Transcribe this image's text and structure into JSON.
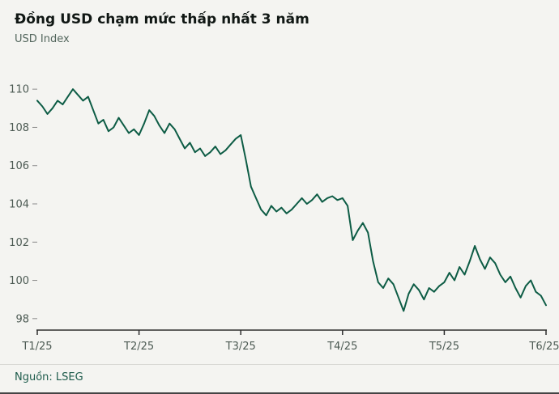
{
  "header": {
    "title": "Đồng USD chạm mức thấp nhất 3 năm",
    "subtitle": "USD Index"
  },
  "footer": {
    "source": "Nguồn: LSEG"
  },
  "colors": {
    "background": "#f4f4f1",
    "line": "#0d5c45",
    "title": "#101714",
    "subtitle": "#53665d",
    "axis_text": "#4c5a53",
    "axis_line": "#2e2e2e",
    "tick": "#8a8a8a",
    "divider": "#d8d8d4",
    "source_text": "#1d5b4b",
    "bottom_border": "#444444"
  },
  "chart_data": {
    "type": "line",
    "title": "Đồng USD chạm mức thấp nhất 3 năm",
    "ylabel": "USD Index",
    "legend": [],
    "grid": false,
    "x_tick_labels": [
      "T1/25",
      "T2/25",
      "T3/25",
      "T4/25",
      "T5/25",
      "T6/25"
    ],
    "y_ticks": [
      98,
      100,
      102,
      104,
      106,
      108,
      110
    ],
    "ylim": [
      97.4,
      110.6
    ],
    "line_color": "#0d5c45",
    "source": "Nguồn: LSEG",
    "values": [
      109.4,
      109.1,
      108.7,
      109.0,
      109.4,
      109.2,
      109.6,
      110.0,
      109.7,
      109.4,
      109.6,
      108.9,
      108.2,
      108.4,
      107.8,
      108.0,
      108.5,
      108.1,
      107.7,
      107.9,
      107.6,
      108.2,
      108.9,
      108.6,
      108.1,
      107.7,
      108.2,
      107.9,
      107.4,
      106.9,
      107.2,
      106.7,
      106.9,
      106.5,
      106.7,
      107.0,
      106.6,
      106.8,
      107.1,
      107.4,
      107.6,
      106.3,
      104.9,
      104.3,
      103.7,
      103.4,
      103.9,
      103.6,
      103.8,
      103.5,
      103.7,
      104.0,
      104.3,
      104.0,
      104.2,
      104.5,
      104.1,
      104.3,
      104.4,
      104.2,
      104.3,
      103.9,
      102.1,
      102.6,
      103.0,
      102.5,
      101.0,
      99.9,
      99.6,
      100.1,
      99.8,
      99.1,
      98.4,
      99.3,
      99.8,
      99.5,
      99.0,
      99.6,
      99.4,
      99.7,
      99.9,
      100.4,
      100.0,
      100.7,
      100.3,
      101.0,
      101.8,
      101.1,
      100.6,
      101.2,
      100.9,
      100.3,
      99.9,
      100.2,
      99.6,
      99.1,
      99.7,
      100.0,
      99.4,
      99.2,
      98.7
    ]
  }
}
